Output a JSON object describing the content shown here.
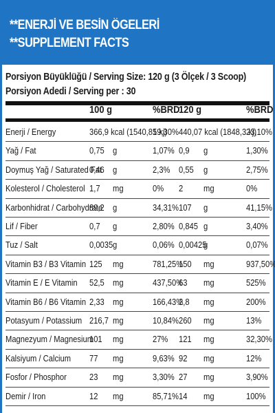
{
  "header": {
    "line1": "**ENERJİ VE BESİN ÖGELERİ",
    "line2": "**SUPPLEMENT FACTS"
  },
  "serving": {
    "size": "Porsiyon Büyüklüğü / Serving Size: 120 g (3 Ölçek / 3 Scoop)",
    "per": "Porsiyon Adedi / Serving per : 30"
  },
  "columns": {
    "amount1": "100 g",
    "pct1": "%BRD",
    "amount2": "120 g",
    "pct2": "%BRD"
  },
  "rows": [
    {
      "name": "Enerji / Energy",
      "v1": "366,9 kcal (1540,85 kj)",
      "u1": "",
      "p1": "19,30%",
      "v2": "440,07 kcal (1848,3 kj)",
      "u2": "",
      "p2": "23,10%"
    },
    {
      "name": "Yağ / Fat",
      "v1": "0,75",
      "u1": "g",
      "p1": "1,07%",
      "v2": "0,9",
      "u2": "g",
      "p2": "1,30%"
    },
    {
      "name": "Doymuş Yağ / Saturated Fat",
      "v1": "0,46",
      "u1": "g",
      "p1": "2,3%",
      "v2": "0,55",
      "u2": "g",
      "p2": "2,75%"
    },
    {
      "name": "Kolesterol / Cholesterol",
      "v1": "1,7",
      "u1": "mg",
      "p1": "0%",
      "v2": "2",
      "u2": "mg",
      "p2": "0%"
    },
    {
      "name": "Karbonhidrat / Carbohydrate",
      "v1": "89,2",
      "u1": "g",
      "p1": "34,31%",
      "v2": "107",
      "u2": "g",
      "p2": "41,15%"
    },
    {
      "name": "Lif / Fiber",
      "v1": "0,7",
      "u1": "g",
      "p1": "2,80%",
      "v2": "0,845",
      "u2": "g",
      "p2": "3,40%"
    },
    {
      "name": "Tuz / Salt",
      "v1": "0,0035",
      "u1": "g",
      "p1": "0,06%",
      "v2": "0,00425",
      "u2": "g",
      "p2": "0,07%"
    },
    {
      "name": "Vitamin B3 / B3 Vitamin",
      "v1": "125",
      "u1": "mg",
      "p1": "781,25%",
      "v2": "150",
      "u2": "mg",
      "p2": "937,50%"
    },
    {
      "name": "Vitamin E / E Vitamin",
      "v1": "52,5",
      "u1": "mg",
      "p1": "437,50%",
      "v2": "63",
      "u2": "mg",
      "p2": "525%"
    },
    {
      "name": "Vitamin B6 / B6 Vitamin",
      "v1": "2,33",
      "u1": "mg",
      "p1": "166,43%",
      "v2": "2,8",
      "u2": "mg",
      "p2": "200%"
    },
    {
      "name": "Potasyum / Potassium",
      "v1": "216,7",
      "u1": "mg",
      "p1": "10,84%",
      "v2": "260",
      "u2": "mg",
      "p2": "13%"
    },
    {
      "name": "Magnezyum / Magnesium",
      "v1": "101",
      "u1": "mg",
      "p1": "27%",
      "v2": "121",
      "u2": "mg",
      "p2": "32,30%"
    },
    {
      "name": "Kalsiyum / Calcium",
      "v1": "77",
      "u1": "mg",
      "p1": "9,63%",
      "v2": "92",
      "u2": "mg",
      "p2": "12%"
    },
    {
      "name": "Fosfor / Phosphor",
      "v1": "23",
      "u1": "mg",
      "p1": "3,30%",
      "v2": "27",
      "u2": "mg",
      "p2": "3,90%"
    },
    {
      "name": "Demir / Iron",
      "v1": "12",
      "u1": "mg",
      "p1": "85,71%",
      "v2": "14",
      "u2": "mg",
      "p2": "100%"
    }
  ],
  "colors": {
    "brand_blue": "#1f75c4",
    "text": "#1a1a1a",
    "rule": "#111111"
  }
}
